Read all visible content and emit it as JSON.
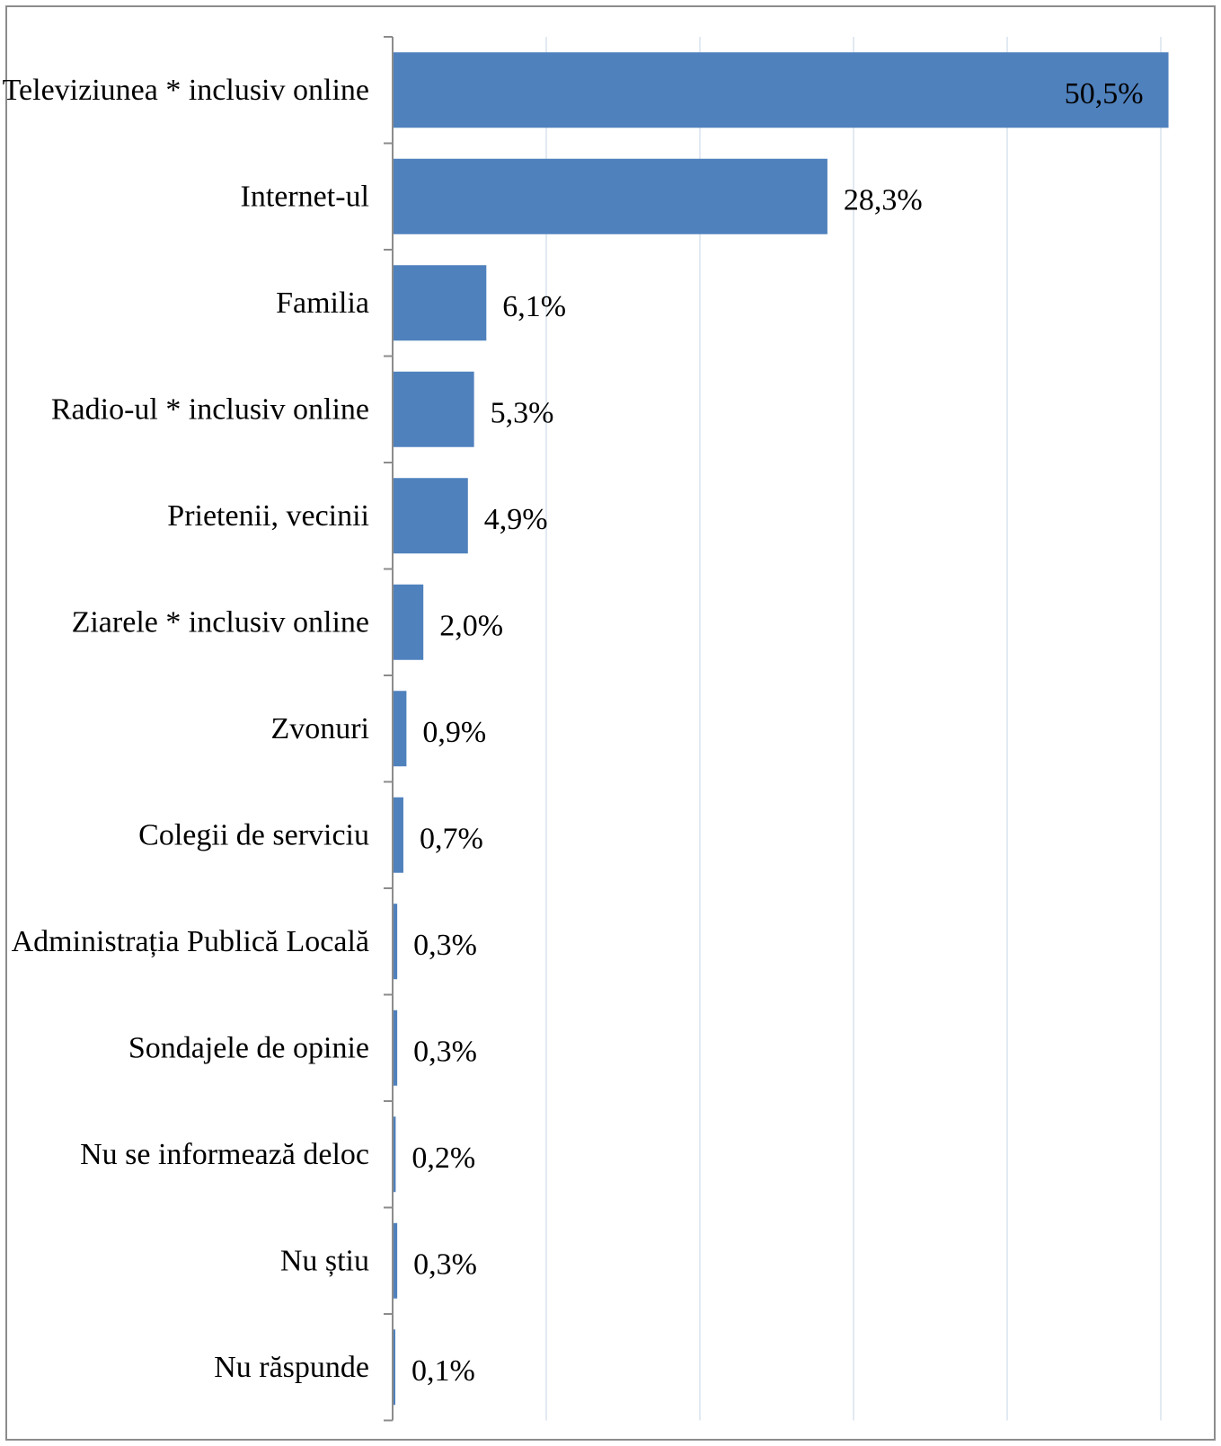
{
  "chart_data": {
    "type": "bar",
    "orientation": "horizontal",
    "categories": [
      "Televiziunea * inclusiv online",
      "Internet-ul",
      "Familia",
      "Radio-ul * inclusiv online",
      "Prietenii, vecinii",
      "Ziarele * inclusiv online",
      "Zvonuri",
      "Colegii de serviciu",
      "Administrația  Publică  Locală",
      "Sondajele de opinie",
      "Nu se informează deloc",
      "Nu știu",
      "Nu răspunde"
    ],
    "values": [
      50.5,
      28.3,
      6.1,
      5.3,
      4.9,
      2.0,
      0.9,
      0.7,
      0.3,
      0.3,
      0.2,
      0.3,
      0.1
    ],
    "value_labels": [
      "50,5%",
      "28,3%",
      "6,1%",
      "5,3%",
      "4,9%",
      "2,0%",
      "0,9%",
      "0,7%",
      "0,3%",
      "0,3%",
      "0,2%",
      "0,3%",
      "0,1%"
    ],
    "xlim": [
      0,
      50
    ],
    "grid": true,
    "legend": "none",
    "bar_color": "#4f81bd",
    "grid_color": "#d9e3ee",
    "inside_label_color": "#ffffff"
  }
}
